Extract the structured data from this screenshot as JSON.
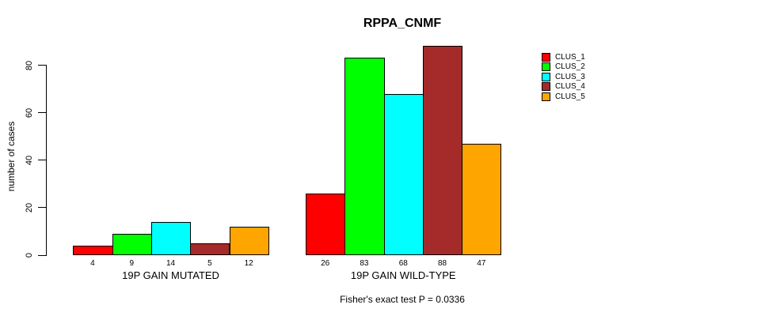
{
  "chart_data": {
    "type": "bar",
    "title": "RPPA_CNMF",
    "ylabel": "number of cases",
    "xlabel": "",
    "ylim": [
      0,
      80
    ],
    "yticks": [
      0,
      20,
      40,
      60,
      80
    ],
    "grid": false,
    "legend_position": "right",
    "categories": [
      "19P GAIN MUTATED",
      "19P GAIN WILD-TYPE"
    ],
    "series": [
      {
        "name": "CLUS_1",
        "color": "#ff0000",
        "values": [
          4,
          26
        ]
      },
      {
        "name": "CLUS_2",
        "color": "#00ff00",
        "values": [
          9,
          83
        ]
      },
      {
        "name": "CLUS_3",
        "color": "#00ffff",
        "values": [
          14,
          68
        ]
      },
      {
        "name": "CLUS_4",
        "color": "#a52a2a",
        "values": [
          5,
          88
        ]
      },
      {
        "name": "CLUS_5",
        "color": "#ffa500",
        "values": [
          12,
          47
        ]
      }
    ],
    "bar_value_labels": {
      "19P GAIN MUTATED": [
        4,
        9,
        14,
        5,
        12
      ],
      "19P GAIN WILD-TYPE": [
        26,
        83,
        68,
        88,
        47
      ]
    },
    "annotation": "Fisher's exact test P = 0.0336",
    "colors": {
      "axis": "#000000",
      "text": "#000000",
      "background": "#ffffff"
    }
  }
}
